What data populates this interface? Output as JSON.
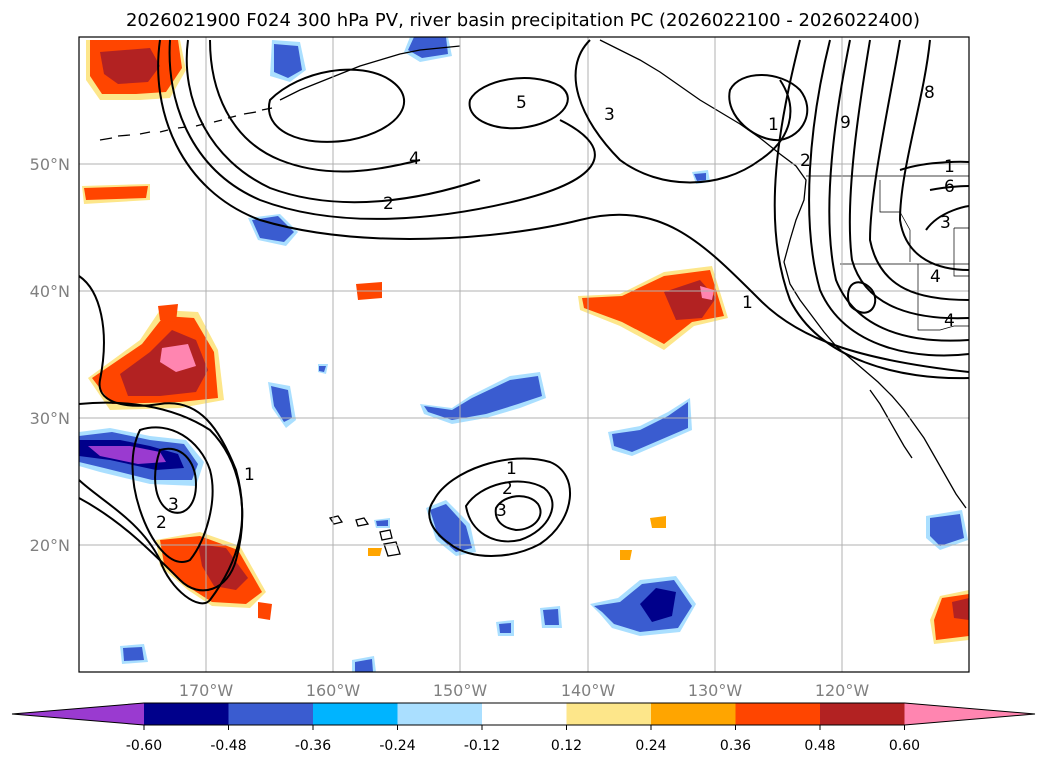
{
  "title": "2026021900 F024 300 hPa PV, river basin precipitation PC (2026022100 - 2026022400)",
  "map": {
    "projection": "PlateCarree",
    "lon_range": [
      -180,
      -110
    ],
    "lat_range": [
      10,
      60
    ],
    "meridians": [
      -170,
      -160,
      -150,
      -140,
      -130,
      -120
    ],
    "parallels": [
      20,
      30,
      40,
      50
    ],
    "lat_labels": [
      "20°N",
      "30°N",
      "40°N",
      "50°N"
    ],
    "lon_labels": [
      "170°W",
      "160°W",
      "150°W",
      "140°W",
      "130°W",
      "120°W"
    ]
  },
  "contour_labels": [
    "2",
    "4",
    "5",
    "3",
    "1",
    "8",
    "9",
    "2",
    "1",
    "6",
    "3",
    "4",
    "4",
    "1",
    "1",
    "3",
    "2",
    "1",
    "2",
    "3"
  ],
  "colorbar": {
    "levels": [
      "-0.60",
      "-0.48",
      "-0.36",
      "-0.24",
      "-0.12",
      "0.12",
      "0.24",
      "0.36",
      "0.48",
      "0.60"
    ],
    "colors": [
      "#9a3ad0",
      "#00008b",
      "#3a5cd0",
      "#00b4ff",
      "#aadfff",
      "#ffffff",
      "#fde68a",
      "#ffa500",
      "#ff4500",
      "#b22222",
      "#ff85b0"
    ],
    "extend": "both"
  },
  "fill_colors": {
    "purple": "#9a3ad0",
    "navy": "#00008b",
    "blue": "#3a5cd0",
    "cyan": "#00b4ff",
    "lightblue": "#aadfff",
    "yellow": "#fde68a",
    "orange": "#ffa500",
    "redorange": "#ff4500",
    "darkred": "#b22222",
    "pink": "#ff85b0"
  }
}
